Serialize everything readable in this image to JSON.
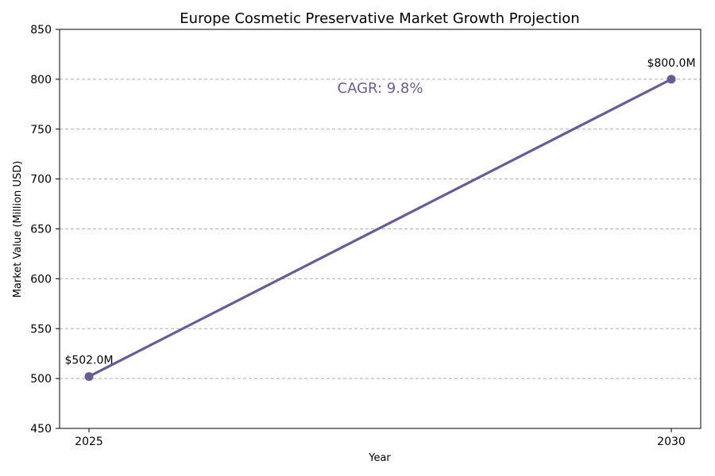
{
  "chart_data": {
    "type": "line",
    "title": "Europe Cosmetic Preservative Market Growth Projection",
    "xlabel": "Year",
    "ylabel": "Market Value (Million USD)",
    "x": [
      2025,
      2030
    ],
    "categories": [
      "2025",
      "2030"
    ],
    "series": [
      {
        "name": "Market Value",
        "values": [
          502.0,
          800.0
        ],
        "labels": [
          "$502.0M",
          "$800.0M"
        ]
      }
    ],
    "ylim": [
      450,
      850
    ],
    "yticks": [
      "450",
      "500",
      "550",
      "600",
      "650",
      "700",
      "750",
      "800",
      "850"
    ],
    "grid": "y-dashed",
    "annotation": {
      "text": "CAGR: 9.8%",
      "x": 2027.5,
      "y": 796
    },
    "colors": {
      "line": "#6b5b95",
      "grid": "#b0b0b0"
    }
  }
}
